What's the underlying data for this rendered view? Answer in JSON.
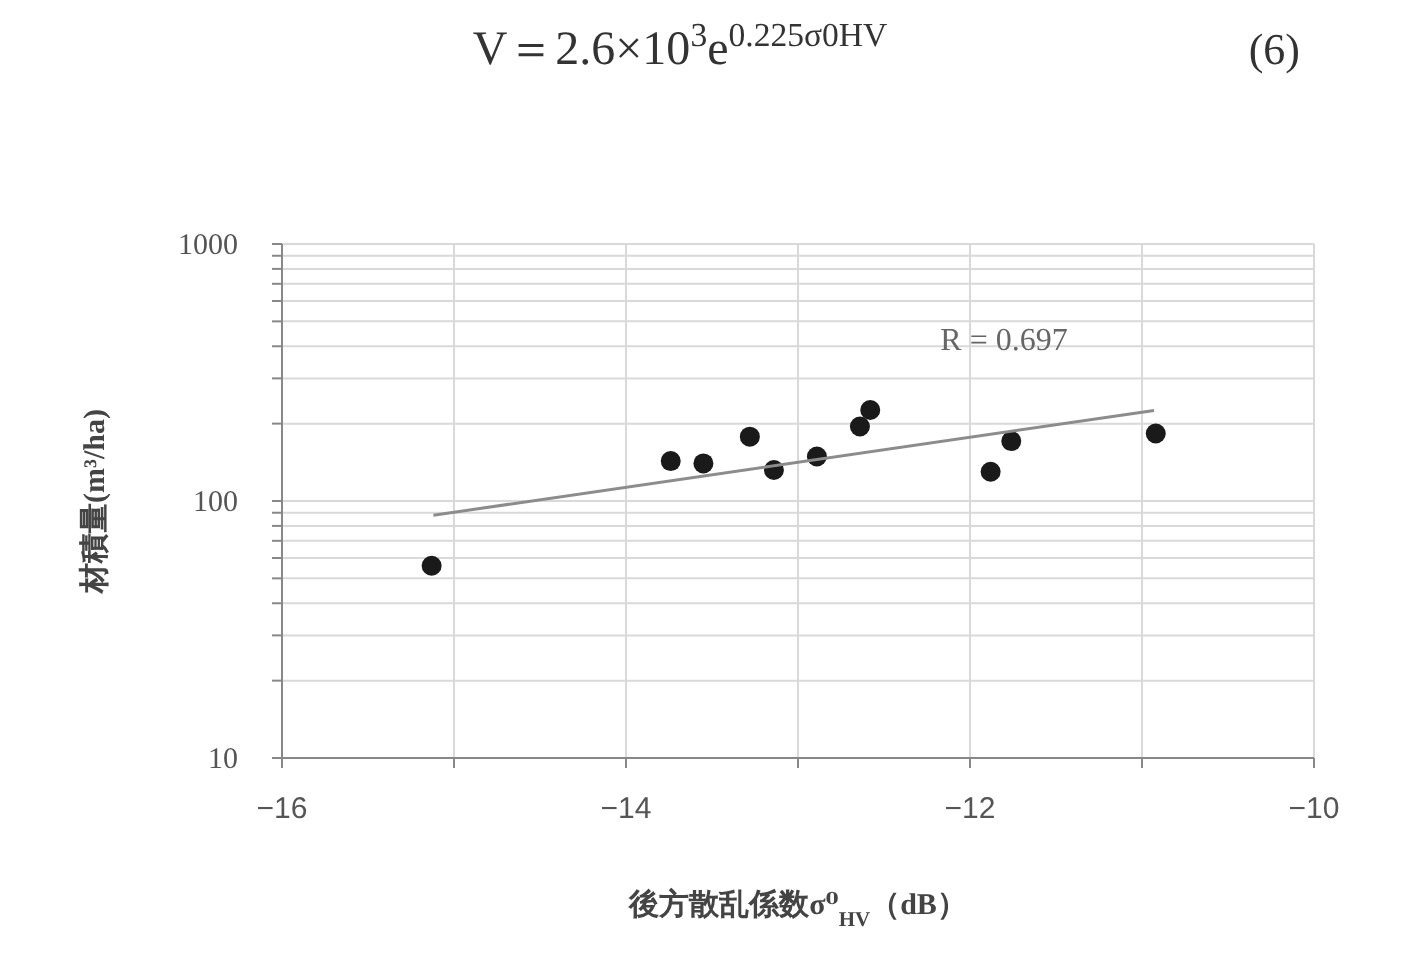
{
  "chart_data": {
    "type": "scatter",
    "title": "V＝2.6×10$^{3}$e$^{0.225σ0HV}$",
    "xlabel": "後方散乱係数σ⁰$_{HV}$（dB）",
    "ylabel": "材積量(m³/ha)",
    "annotations": [
      "(6)",
      "R = 0.697"
    ],
    "log": "y",
    "xlim": [
      -16,
      -10
    ],
    "xticks": [
      -16,
      {
        "value": -15,
        "label": null
      },
      -14,
      {
        "value": -13,
        "label": null
      },
      -12,
      {
        "value": -11,
        "label": null
      },
      -10
    ],
    "ylim": [
      10,
      1000
    ],
    "yticks": [
      10,
      {
        "value": 20,
        "label": null
      },
      {
        "value": 30,
        "label": null
      },
      {
        "value": 40,
        "label": null
      },
      {
        "value": 50,
        "label": null
      },
      {
        "value": 60,
        "label": null
      },
      {
        "value": 70,
        "label": null
      },
      {
        "value": 80,
        "label": null
      },
      {
        "value": 90,
        "label": null
      },
      100,
      {
        "value": 200,
        "label": null
      },
      {
        "value": 300,
        "label": null
      },
      {
        "value": 400,
        "label": null
      },
      {
        "value": 500,
        "label": null
      },
      {
        "value": 600,
        "label": null
      },
      {
        "value": 700,
        "label": null
      },
      {
        "value": 800,
        "label": null
      },
      {
        "value": 900,
        "label": null
      },
      1000
    ],
    "grid": true,
    "series": [
      {
        "color": "#1a1a1a",
        "marker": "circle",
        "x": [
          -15.13,
          -13.74,
          -13.55,
          -13.28,
          -13.14,
          -12.89,
          -12.64,
          -12.58,
          -11.88,
          -11.76,
          -10.92
        ],
        "values": [
          56,
          143,
          140,
          178,
          132,
          149,
          195,
          226,
          130,
          171,
          183
        ]
      },
      {
        "type": "line",
        "color": "#8c8c8c",
        "marker": "none",
        "line_style": "solid",
        "x": [
          -15.12,
          -10.93
        ],
        "values": [
          88,
          225
        ]
      }
    ]
  }
}
